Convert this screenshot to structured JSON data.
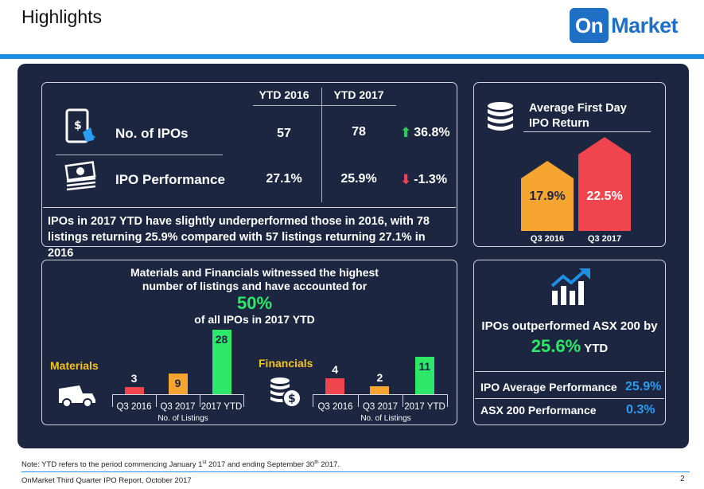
{
  "header": {
    "title": "Highlights",
    "logo_on": "On",
    "logo_market": "Market"
  },
  "ipo_table": {
    "col1": "YTD 2016",
    "col2": "YTD 2017",
    "rows": [
      {
        "label": "No. of IPOs",
        "v2016": "57",
        "v2017": "78",
        "change": "36.8%",
        "direction": "up"
      },
      {
        "label": "IPO Performance",
        "v2016": "27.1%",
        "v2017": "25.9%",
        "change": "-1.3%",
        "direction": "down"
      }
    ],
    "summary": "IPOs in 2017 YTD have slightly underperformed those in 2016, with 78 listings returning 25.9% compared with 57 listings returning 27.1% in 2016"
  },
  "first_day": {
    "title_line1": "Average First Day",
    "title_line2": "IPO Return",
    "items": [
      {
        "label": "Q3 2016",
        "value": "17.9%",
        "color": "#f7a531"
      },
      {
        "label": "Q3 2017",
        "value": "22.5%",
        "color": "#f0444f"
      }
    ]
  },
  "sectors": {
    "headline1": "Materials and Financials witnessed the highest",
    "headline2": "number of listings and have accounted for",
    "big_pct": "50%",
    "sub": "of all IPOs in 2017 YTD",
    "axis_title": "No. of Listings",
    "charts": [
      {
        "name": "Materials",
        "categories": [
          "Q3 2016",
          "Q3 2017",
          "2017 YTD"
        ],
        "values": [
          3,
          9,
          28
        ],
        "labels": [
          "3",
          "9",
          "28"
        ]
      },
      {
        "name": "Financials",
        "categories": [
          "Q3 2016",
          "Q3 2017",
          "2017 YTD"
        ],
        "values": [
          4,
          2,
          11
        ],
        "labels": [
          "4",
          "2",
          "11"
        ]
      }
    ],
    "colors": [
      "#f0444f",
      "#f7a531",
      "#2ee86a"
    ]
  },
  "outperform": {
    "line1": "IPOs outperformed ASX 200 by",
    "big": "25.6%",
    "ytd": "YTD",
    "rows": [
      {
        "label": "IPO Average Performance",
        "value": "25.9%"
      },
      {
        "label": "ASX 200 Performance",
        "value": "0.3%"
      }
    ]
  },
  "footer": {
    "note_a": "Note: YTD refers to the period commencing January 1",
    "note_sup1": "st",
    "note_b": " 2017 and ending September 30",
    "note_sup2": "th",
    "note_c": " 2017.",
    "report": "OnMarket Third Quarter IPO Report, October 2017",
    "page": "2"
  }
}
